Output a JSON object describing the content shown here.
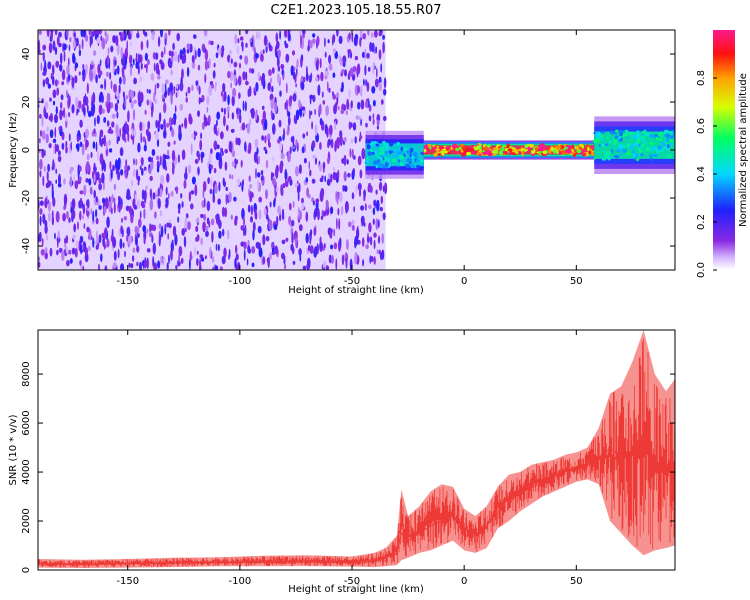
{
  "figure": {
    "title": "C2E1.2023.105.18.55.R07"
  },
  "colors": {
    "snr_line": "#ee3a36",
    "frame": "#000000"
  },
  "chart_data": [
    {
      "type": "heatmap",
      "xlabel": "Height of straight line (km)",
      "ylabel": "Frequency (Hz)",
      "xlim": [
        -190,
        94
      ],
      "ylim": [
        -50,
        50
      ],
      "x_ticks": [
        -150,
        -100,
        -50,
        0,
        50
      ],
      "y_ticks": [
        -40,
        -20,
        0,
        20,
        40
      ],
      "grid": false,
      "colorbar": {
        "label": "Normalized spectral amplitude",
        "range": [
          0,
          1
        ],
        "ticks": [
          "0.0",
          "0.2",
          "0.4",
          "0.6",
          "0.8"
        ],
        "colormap": "white-violet-blue-cyan-green-yellow-orange-red-pink"
      },
      "regions": [
        {
          "x_range": [
            -190,
            -35
          ],
          "description_value": "broadband noise",
          "freq_range": [
            -50,
            50
          ],
          "amplitude": 0.15
        },
        {
          "x_range": [
            -44,
            -18
          ],
          "freq_center": -2,
          "freq_halfwidth": 5,
          "amplitude": 0.45
        },
        {
          "x_range": [
            -18,
            60
          ],
          "freq_center": 0,
          "freq_halfwidth": 2,
          "amplitude": 0.95
        },
        {
          "x_range": [
            58,
            94
          ],
          "freq_center": 2,
          "freq_halfwidth": 6,
          "amplitude": 0.5
        }
      ]
    },
    {
      "type": "line",
      "xlabel": "Height of straight line (km)",
      "ylabel": "SNR (10 * v/v)",
      "xlim": [
        -190,
        94
      ],
      "ylim": [
        0,
        9800
      ],
      "x_ticks": [
        -150,
        -100,
        -50,
        0,
        50
      ],
      "y_ticks": [
        0,
        2000,
        4000,
        6000,
        8000
      ],
      "grid": false,
      "series": [
        {
          "x": [
            -190,
            -170,
            -150,
            -130,
            -110,
            -90,
            -70,
            -50,
            -40,
            -35,
            -30,
            -28,
            -25,
            -20,
            -15,
            -10,
            -5,
            0,
            5,
            10,
            15,
            20,
            25,
            30,
            35,
            40,
            45,
            50,
            55,
            60,
            65,
            70,
            75,
            80,
            85,
            90,
            94
          ],
          "values": [
            250,
            220,
            260,
            280,
            300,
            310,
            330,
            300,
            350,
            500,
            700,
            1500,
            1200,
            1500,
            1800,
            2000,
            2300,
            1400,
            1400,
            1800,
            2600,
            3000,
            3200,
            3500,
            3700,
            3800,
            4000,
            4200,
            4300,
            4500,
            5000,
            4600,
            4700,
            4900,
            4400,
            4300,
            4200
          ],
          "upper": [
            450,
            420,
            450,
            500,
            520,
            580,
            600,
            550,
            700,
            900,
            1400,
            3300,
            2200,
            2600,
            3200,
            3500,
            3400,
            2500,
            2200,
            2600,
            3400,
            3900,
            4000,
            4300,
            4400,
            4500,
            4700,
            4800,
            5000,
            5800,
            7200,
            7500,
            8500,
            9800,
            8000,
            7300,
            7800
          ],
          "lower": [
            100,
            80,
            100,
            120,
            150,
            150,
            160,
            140,
            120,
            150,
            200,
            400,
            500,
            700,
            800,
            1000,
            1200,
            800,
            700,
            900,
            1700,
            2000,
            2400,
            2700,
            3000,
            3200,
            3400,
            3600,
            3700,
            3500,
            2000,
            1500,
            1000,
            600,
            800,
            900,
            1000
          ]
        }
      ]
    }
  ]
}
